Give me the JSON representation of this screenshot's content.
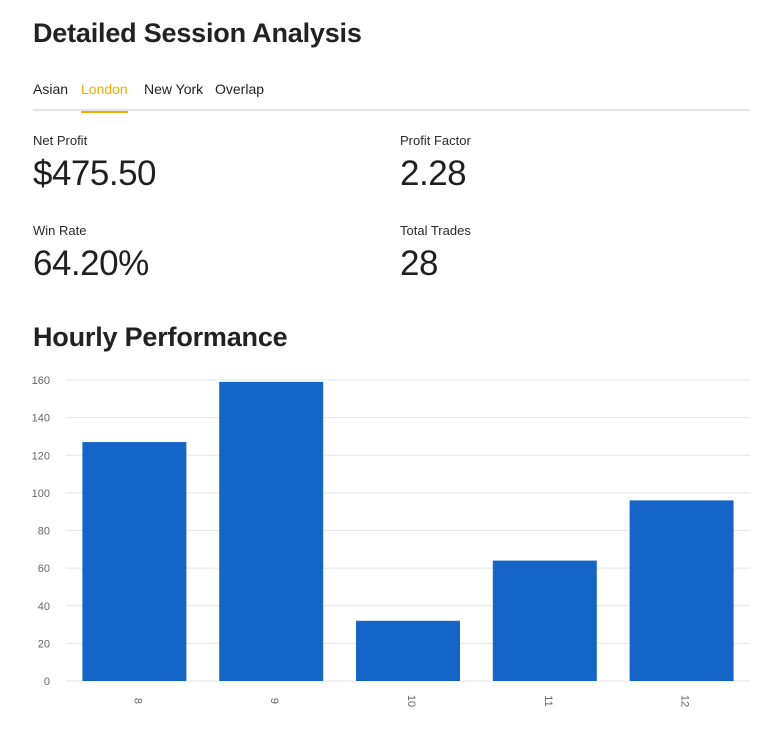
{
  "header": {
    "title": "Detailed Session Analysis"
  },
  "tabs": [
    {
      "label": "Asian",
      "active": false
    },
    {
      "label": "London",
      "active": true
    },
    {
      "label": "New York",
      "active": false
    },
    {
      "label": "Overlap",
      "active": false
    }
  ],
  "metrics": {
    "net_profit": {
      "label": "Net Profit",
      "value": "$475.50"
    },
    "profit_factor": {
      "label": "Profit Factor",
      "value": "2.28"
    },
    "win_rate": {
      "label": "Win Rate",
      "value": "64.20%"
    },
    "total_trades": {
      "label": "Total Trades",
      "value": "28"
    }
  },
  "hourly_section": {
    "title": "Hourly Performance"
  },
  "colors": {
    "accent": "#f0ad00",
    "bar": "#1565c8",
    "grid": "#e6e6e6",
    "tick": "#666666"
  },
  "chart_data": {
    "type": "bar",
    "categories": [
      "8",
      "9",
      "10",
      "11",
      "12"
    ],
    "values": [
      127,
      159,
      32,
      64,
      96
    ],
    "yticks": [
      0,
      20,
      40,
      60,
      80,
      100,
      120,
      140,
      160
    ],
    "ylim": [
      0,
      160
    ],
    "grid": true,
    "xtick_rotation": "vertical"
  }
}
